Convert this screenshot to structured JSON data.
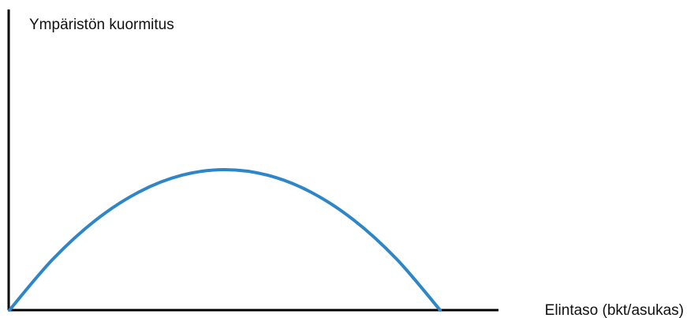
{
  "chart_data": {
    "type": "line",
    "title": "",
    "ylabel": "Ympäristön kuormitus",
    "xlabel": "Elintaso (bkt/asukas)",
    "grid": false,
    "series": [
      {
        "color": "#2E86C8",
        "x": [
          0,
          1,
          2,
          3,
          4,
          5,
          6,
          7,
          8,
          9,
          10
        ],
        "y": [
          0,
          0.36,
          0.64,
          0.84,
          0.96,
          1.0,
          0.96,
          0.84,
          0.64,
          0.36,
          0
        ]
      }
    ]
  }
}
